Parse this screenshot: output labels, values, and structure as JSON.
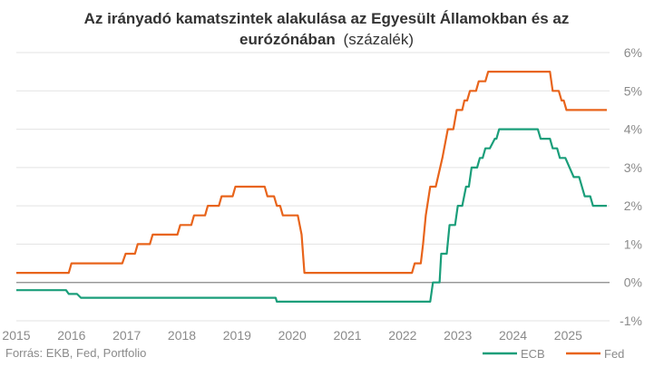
{
  "chart_data": {
    "type": "line",
    "title_bold_line1": "Az irányadó kamatszintek alakulása az Egyesült Államokban és az",
    "title_bold_line2": "eurózónában",
    "title_suffix": "(százalék)",
    "source": "Forrás: EKB, Fed, Portfolio",
    "xlabel": "",
    "ylabel": "",
    "xlim": [
      2015.0,
      2025.75
    ],
    "ylim": [
      -1,
      6
    ],
    "y_ticks": [
      {
        "value": 6,
        "label": "6%"
      },
      {
        "value": 5,
        "label": "5%"
      },
      {
        "value": 4,
        "label": "4%"
      },
      {
        "value": 3,
        "label": "3%"
      },
      {
        "value": 2,
        "label": "2%"
      },
      {
        "value": 1,
        "label": "1%"
      },
      {
        "value": 0,
        "label": "0%"
      },
      {
        "value": -1,
        "label": "-1%"
      }
    ],
    "x_ticks": [
      {
        "value": 2015,
        "label": "2015"
      },
      {
        "value": 2016,
        "label": "2016"
      },
      {
        "value": 2017,
        "label": "2017"
      },
      {
        "value": 2018,
        "label": "2018"
      },
      {
        "value": 2019,
        "label": "2019"
      },
      {
        "value": 2020,
        "label": "2020"
      },
      {
        "value": 2021,
        "label": "2021"
      },
      {
        "value": 2022,
        "label": "2022"
      },
      {
        "value": 2023,
        "label": "2023"
      },
      {
        "value": 2024,
        "label": "2024"
      },
      {
        "value": 2025,
        "label": "2025"
      }
    ],
    "grid": "horizontal",
    "legend_position": "bottom-right",
    "series": [
      {
        "name": "ECB",
        "color": "#1a9e7a",
        "points": [
          [
            2015.0,
            -0.2
          ],
          [
            2015.9,
            -0.2
          ],
          [
            2015.95,
            -0.3
          ],
          [
            2016.1,
            -0.3
          ],
          [
            2016.17,
            -0.4
          ],
          [
            2019.7,
            -0.4
          ],
          [
            2019.72,
            -0.5
          ],
          [
            2022.5,
            -0.5
          ],
          [
            2022.55,
            0.0
          ],
          [
            2022.67,
            0.0
          ],
          [
            2022.7,
            0.75
          ],
          [
            2022.8,
            0.75
          ],
          [
            2022.85,
            1.5
          ],
          [
            2022.95,
            1.5
          ],
          [
            2023.0,
            2.0
          ],
          [
            2023.08,
            2.0
          ],
          [
            2023.15,
            2.5
          ],
          [
            2023.2,
            2.5
          ],
          [
            2023.25,
            3.0
          ],
          [
            2023.35,
            3.0
          ],
          [
            2023.4,
            3.25
          ],
          [
            2023.45,
            3.25
          ],
          [
            2023.5,
            3.5
          ],
          [
            2023.58,
            3.5
          ],
          [
            2023.67,
            3.75
          ],
          [
            2023.7,
            3.75
          ],
          [
            2023.75,
            4.0
          ],
          [
            2024.45,
            4.0
          ],
          [
            2024.5,
            3.75
          ],
          [
            2024.67,
            3.75
          ],
          [
            2024.72,
            3.5
          ],
          [
            2024.8,
            3.5
          ],
          [
            2024.85,
            3.25
          ],
          [
            2024.95,
            3.25
          ],
          [
            2025.1,
            2.75
          ],
          [
            2025.2,
            2.75
          ],
          [
            2025.3,
            2.25
          ],
          [
            2025.4,
            2.25
          ],
          [
            2025.45,
            2.0
          ],
          [
            2025.7,
            2.0
          ]
        ]
      },
      {
        "name": "Fed",
        "color": "#e8641b",
        "points": [
          [
            2015.0,
            0.25
          ],
          [
            2015.95,
            0.25
          ],
          [
            2016.0,
            0.5
          ],
          [
            2016.92,
            0.5
          ],
          [
            2016.98,
            0.75
          ],
          [
            2017.15,
            0.75
          ],
          [
            2017.2,
            1.0
          ],
          [
            2017.42,
            1.0
          ],
          [
            2017.47,
            1.25
          ],
          [
            2017.92,
            1.25
          ],
          [
            2017.97,
            1.5
          ],
          [
            2018.17,
            1.5
          ],
          [
            2018.22,
            1.75
          ],
          [
            2018.42,
            1.75
          ],
          [
            2018.47,
            2.0
          ],
          [
            2018.67,
            2.0
          ],
          [
            2018.72,
            2.25
          ],
          [
            2018.92,
            2.25
          ],
          [
            2018.97,
            2.5
          ],
          [
            2019.5,
            2.5
          ],
          [
            2019.55,
            2.25
          ],
          [
            2019.67,
            2.25
          ],
          [
            2019.72,
            2.0
          ],
          [
            2019.78,
            2.0
          ],
          [
            2019.83,
            1.75
          ],
          [
            2020.1,
            1.75
          ],
          [
            2020.17,
            1.25
          ],
          [
            2020.22,
            0.25
          ],
          [
            2022.17,
            0.25
          ],
          [
            2022.22,
            0.5
          ],
          [
            2022.33,
            0.5
          ],
          [
            2022.37,
            1.0
          ],
          [
            2022.42,
            1.75
          ],
          [
            2022.5,
            2.5
          ],
          [
            2022.6,
            2.5
          ],
          [
            2022.72,
            3.25
          ],
          [
            2022.82,
            4.0
          ],
          [
            2022.92,
            4.0
          ],
          [
            2022.98,
            4.5
          ],
          [
            2023.08,
            4.5
          ],
          [
            2023.12,
            4.75
          ],
          [
            2023.17,
            4.75
          ],
          [
            2023.22,
            5.0
          ],
          [
            2023.33,
            5.0
          ],
          [
            2023.38,
            5.25
          ],
          [
            2023.5,
            5.25
          ],
          [
            2023.55,
            5.5
          ],
          [
            2024.67,
            5.5
          ],
          [
            2024.72,
            5.0
          ],
          [
            2024.83,
            5.0
          ],
          [
            2024.88,
            4.75
          ],
          [
            2024.92,
            4.75
          ],
          [
            2024.97,
            4.5
          ],
          [
            2025.7,
            4.5
          ]
        ]
      }
    ]
  }
}
